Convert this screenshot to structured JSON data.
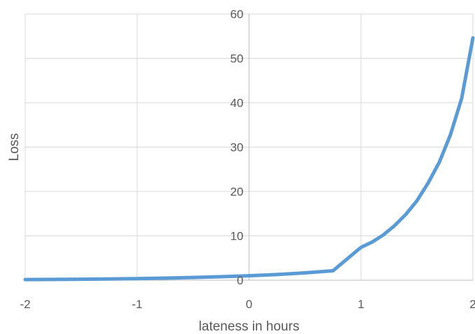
{
  "chart_data": {
    "type": "line",
    "title": "",
    "xlabel": "lateness in hours",
    "ylabel": "Loss",
    "xlim": [
      -2,
      2
    ],
    "ylim": [
      0,
      60
    ],
    "x_ticks": [
      -2,
      -1,
      0,
      1,
      2
    ],
    "y_ticks": [
      0,
      10,
      20,
      30,
      40,
      50,
      60
    ],
    "x_tick_labels": [
      "-2",
      "-1",
      "0",
      "1",
      "2"
    ],
    "y_tick_labels": [
      "0",
      "10",
      "20",
      "30",
      "40",
      "50",
      "60"
    ],
    "grid": true,
    "legend": "none",
    "series": [
      {
        "color": "#5B9BD5",
        "x": [
          -2.0,
          -1.75,
          -1.5,
          -1.25,
          -1.0,
          -0.75,
          -0.5,
          -0.25,
          0.0,
          0.25,
          0.5,
          0.75,
          1.0,
          1.1,
          1.2,
          1.3,
          1.4,
          1.5,
          1.6,
          1.7,
          1.8,
          1.9,
          2.0
        ],
        "y": [
          0.14,
          0.17,
          0.22,
          0.29,
          0.37,
          0.47,
          0.61,
          0.78,
          1.0,
          1.28,
          1.65,
          2.12,
          7.4,
          8.6,
          10.2,
          12.3,
          14.8,
          17.9,
          21.9,
          26.6,
          32.8,
          41.0,
          54.6
        ]
      }
    ]
  }
}
